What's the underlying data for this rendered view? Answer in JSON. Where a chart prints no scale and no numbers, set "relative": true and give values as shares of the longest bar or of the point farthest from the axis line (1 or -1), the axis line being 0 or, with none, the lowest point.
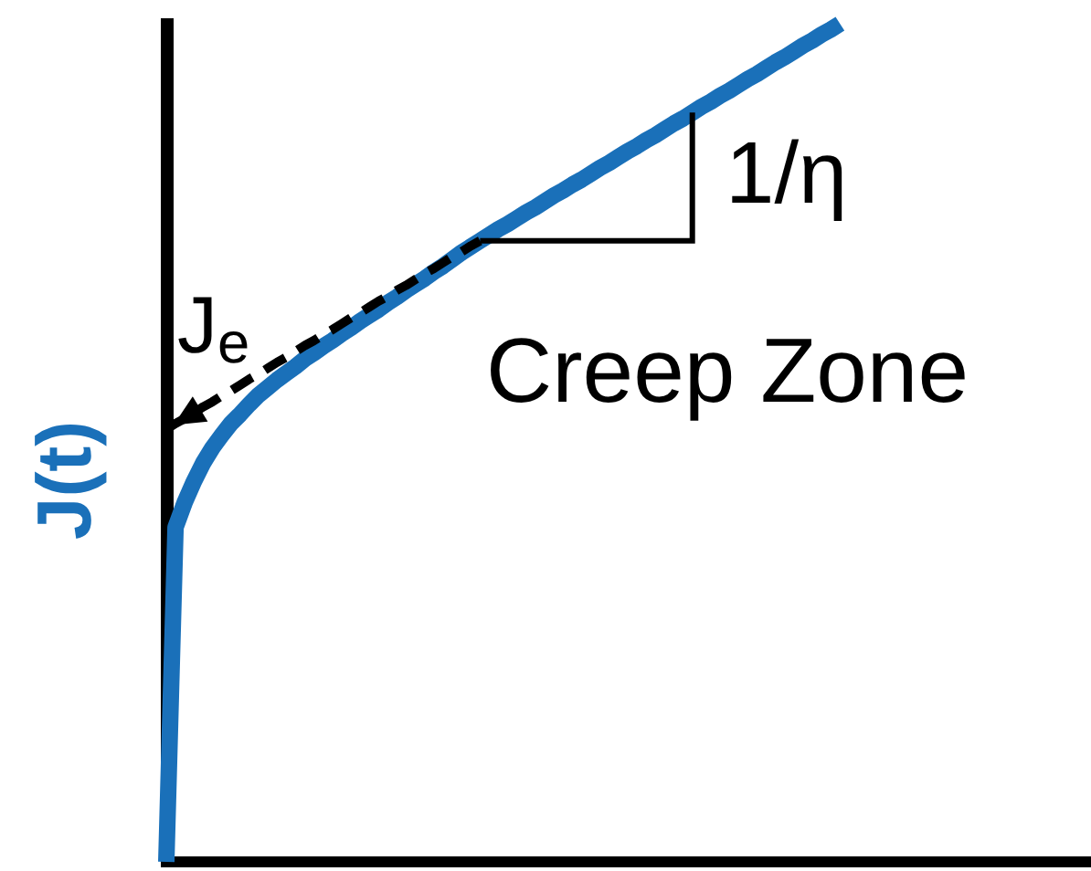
{
  "chart_data": {
    "type": "line",
    "relative": true,
    "ylabel": "J(t)",
    "legend": false,
    "grid": false,
    "marker": "none",
    "tick_labels": false,
    "categories": [
      null,
      null,
      null,
      null,
      null,
      null,
      null,
      null,
      null,
      null,
      null,
      null,
      null,
      null,
      null,
      null,
      null,
      null,
      null,
      null,
      null,
      null,
      null,
      null,
      null,
      null,
      null,
      null,
      null,
      null,
      null,
      null,
      null,
      null,
      null,
      null,
      null,
      null,
      null,
      null,
      null,
      null,
      null,
      null,
      null,
      null,
      null,
      null,
      null,
      null,
      null,
      null,
      null,
      null,
      null,
      null,
      null,
      null,
      null,
      null,
      null,
      null,
      null,
      null,
      null,
      null,
      null,
      null,
      null,
      null,
      null,
      null,
      null,
      null,
      null,
      null,
      null,
      null,
      null,
      null,
      null,
      null,
      null,
      null,
      null,
      null,
      null,
      null,
      null,
      null,
      null,
      null,
      null,
      null,
      null,
      null,
      null,
      null,
      null,
      null,
      null
    ],
    "series": [
      {
        "color": "#1a70b9",
        "line_style": "solid",
        "values": [
          0,
          0.399,
          0.429,
          0.454,
          0.476,
          0.494,
          0.509,
          0.523,
          0.534,
          0.546,
          0.557,
          0.566,
          0.575,
          0.583,
          0.591,
          0.6,
          0.607,
          0.615,
          0.622,
          0.63,
          0.637,
          0.645,
          0.652,
          0.659,
          0.667,
          0.674,
          0.682,
          0.689,
          0.696,
          0.704,
          0.711,
          0.719,
          0.727,
          0.734,
          0.741,
          0.748,
          0.755,
          0.761,
          0.768,
          0.775,
          0.781,
          0.788,
          0.795,
          0.801,
          0.808,
          0.814,
          0.821,
          0.828,
          0.834,
          0.841,
          0.848,
          0.854,
          0.861,
          0.867,
          0.874,
          0.881,
          0.887,
          0.894,
          0.901,
          0.907,
          0.914,
          0.92,
          0.927,
          0.934,
          0.94,
          0.947,
          0.954,
          0.96,
          0.967,
          0.974,
          0.98,
          0.987,
          0.993,
          1,
          null,
          null,
          null,
          null,
          null,
          null,
          null,
          null,
          null,
          null,
          null,
          null,
          null,
          null,
          null,
          null,
          null,
          null,
          null,
          null,
          null,
          null,
          null,
          null,
          null,
          null,
          null
        ]
      },
      {
        "type": "line",
        "color": "#000000",
        "line_style": "dashed",
        "values": [
          0.516,
          0.523,
          0.529,
          0.536,
          0.543,
          0.549,
          0.556,
          0.562,
          0.569,
          0.576,
          0.582,
          0.589,
          0.596,
          0.602,
          0.609,
          0.616,
          0.622,
          0.629,
          0.635,
          0.642,
          0.649,
          0.655,
          0.662,
          0.669,
          0.675,
          0.682,
          0.688,
          0.695,
          0.702,
          0.708,
          0.715,
          0.722,
          0.728,
          0.735,
          0.741,
          null,
          null,
          null,
          null,
          null,
          null,
          null,
          null,
          null,
          null,
          null,
          null,
          null,
          null,
          null,
          null,
          null,
          null,
          null,
          null,
          null,
          null,
          null,
          null,
          null,
          null,
          null,
          null,
          null,
          null,
          null,
          null,
          null,
          null,
          null,
          null,
          null,
          null,
          null,
          null,
          null,
          null,
          null,
          null,
          null,
          null,
          null,
          null,
          null,
          null,
          null,
          null,
          null,
          null,
          null,
          null,
          null,
          null,
          null,
          null,
          null,
          null,
          null,
          null,
          null,
          null
        ]
      }
    ],
    "annotations": [
      "J$_{e}$",
      "1/η",
      "Creep Zone"
    ]
  }
}
